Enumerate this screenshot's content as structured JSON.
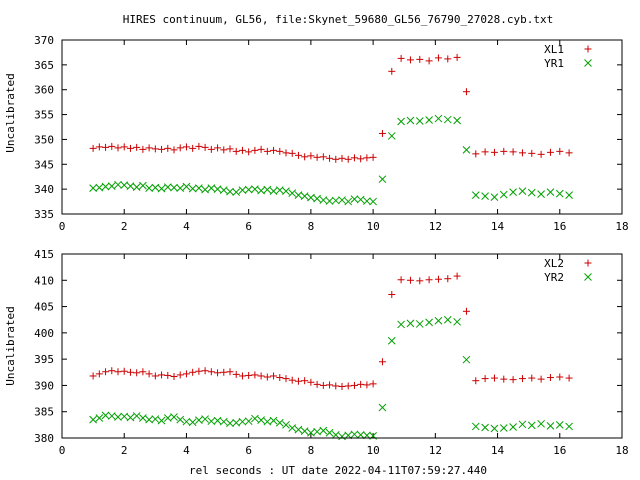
{
  "chart_data": [
    {
      "type": "scatter",
      "title": "HIRES continuum, GL56, file:Skynet_59680_GL56_76790_27028.cyb.txt",
      "xlabel": "",
      "ylabel": "Uncalibrated",
      "xlim": [
        0,
        18
      ],
      "ylim": [
        335,
        370
      ],
      "xticks": [
        0,
        2,
        4,
        6,
        8,
        10,
        12,
        14,
        16,
        18
      ],
      "yticks": [
        335,
        340,
        345,
        350,
        355,
        360,
        365,
        370
      ],
      "grid": false,
      "legend": "top-right",
      "series": [
        {
          "name": "XL1",
          "marker": "plus",
          "color": "#cc0000",
          "x": [
            1.0,
            1.2,
            1.4,
            1.6,
            1.8,
            2.0,
            2.2,
            2.4,
            2.6,
            2.8,
            3.0,
            3.2,
            3.4,
            3.6,
            3.8,
            4.0,
            4.2,
            4.4,
            4.6,
            4.8,
            5.0,
            5.2,
            5.4,
            5.6,
            5.8,
            6.0,
            6.2,
            6.4,
            6.6,
            6.8,
            7.0,
            7.2,
            7.4,
            7.6,
            7.8,
            8.0,
            8.2,
            8.4,
            8.6,
            8.8,
            9.0,
            9.2,
            9.4,
            9.6,
            9.8,
            10.0,
            10.3,
            10.6,
            10.9,
            11.2,
            11.5,
            11.8,
            12.1,
            12.4,
            12.7,
            13.0,
            13.3,
            13.6,
            13.9,
            14.2,
            14.5,
            14.8,
            15.1,
            15.4,
            15.7,
            16.0,
            16.3
          ],
          "y": [
            348.2,
            348.5,
            348.4,
            348.6,
            348.3,
            348.5,
            348.2,
            348.4,
            348.0,
            348.3,
            348.1,
            348.0,
            348.2,
            347.9,
            348.3,
            348.5,
            348.2,
            348.6,
            348.4,
            348.0,
            348.3,
            347.9,
            348.1,
            347.6,
            347.8,
            347.5,
            347.8,
            348.0,
            347.6,
            347.8,
            347.6,
            347.3,
            347.2,
            346.8,
            346.5,
            346.7,
            346.4,
            346.5,
            346.2,
            346.0,
            346.2,
            346.0,
            346.3,
            346.1,
            346.3,
            346.4,
            351.2,
            363.7,
            366.3,
            366.0,
            366.1,
            365.8,
            366.4,
            366.2,
            366.5,
            359.6,
            347.1,
            347.5,
            347.4,
            347.6,
            347.5,
            347.3,
            347.2,
            347.0,
            347.4,
            347.6,
            347.3
          ]
        },
        {
          "name": "YR1",
          "marker": "cross",
          "color": "#00a000",
          "x": [
            1.0,
            1.2,
            1.4,
            1.6,
            1.8,
            2.0,
            2.2,
            2.4,
            2.6,
            2.8,
            3.0,
            3.2,
            3.4,
            3.6,
            3.8,
            4.0,
            4.2,
            4.4,
            4.6,
            4.8,
            5.0,
            5.2,
            5.4,
            5.6,
            5.8,
            6.0,
            6.2,
            6.4,
            6.6,
            6.8,
            7.0,
            7.2,
            7.4,
            7.6,
            7.8,
            8.0,
            8.2,
            8.4,
            8.6,
            8.8,
            9.0,
            9.2,
            9.4,
            9.6,
            9.8,
            10.0,
            10.3,
            10.6,
            10.9,
            11.2,
            11.5,
            11.8,
            12.1,
            12.4,
            12.7,
            13.0,
            13.3,
            13.6,
            13.9,
            14.2,
            14.5,
            14.8,
            15.1,
            15.4,
            15.7,
            16.0,
            16.3
          ],
          "y": [
            340.2,
            340.3,
            340.5,
            340.6,
            340.9,
            340.8,
            340.6,
            340.4,
            340.7,
            340.2,
            340.3,
            340.1,
            340.4,
            340.3,
            340.2,
            340.5,
            340.1,
            340.2,
            339.9,
            340.2,
            340.0,
            339.8,
            339.5,
            339.4,
            339.8,
            339.9,
            340.0,
            339.7,
            339.9,
            339.6,
            339.8,
            339.6,
            339.2,
            338.8,
            338.6,
            338.3,
            338.1,
            337.8,
            337.6,
            337.7,
            337.8,
            337.5,
            338.0,
            337.9,
            337.6,
            337.5,
            342.0,
            350.7,
            353.6,
            353.8,
            353.7,
            353.9,
            354.2,
            354.0,
            353.8,
            347.9,
            338.8,
            338.6,
            338.4,
            338.9,
            339.4,
            339.6,
            339.3,
            339.0,
            339.4,
            339.1,
            338.8
          ]
        }
      ]
    },
    {
      "type": "scatter",
      "title": "",
      "xlabel": "rel seconds : UT date 2022-04-11T07:59:27.440",
      "ylabel": "Uncalibrated",
      "xlim": [
        0,
        18
      ],
      "ylim": [
        380,
        415
      ],
      "xticks": [
        0,
        2,
        4,
        6,
        8,
        10,
        12,
        14,
        16,
        18
      ],
      "yticks": [
        380,
        385,
        390,
        395,
        400,
        405,
        410,
        415
      ],
      "grid": false,
      "legend": "top-right",
      "series": [
        {
          "name": "XL2",
          "marker": "plus",
          "color": "#cc0000",
          "x": [
            1.0,
            1.2,
            1.4,
            1.6,
            1.8,
            2.0,
            2.2,
            2.4,
            2.6,
            2.8,
            3.0,
            3.2,
            3.4,
            3.6,
            3.8,
            4.0,
            4.2,
            4.4,
            4.6,
            4.8,
            5.0,
            5.2,
            5.4,
            5.6,
            5.8,
            6.0,
            6.2,
            6.4,
            6.6,
            6.8,
            7.0,
            7.2,
            7.4,
            7.6,
            7.8,
            8.0,
            8.2,
            8.4,
            8.6,
            8.8,
            9.0,
            9.2,
            9.4,
            9.6,
            9.8,
            10.0,
            10.3,
            10.6,
            10.9,
            11.2,
            11.5,
            11.8,
            12.1,
            12.4,
            12.7,
            13.0,
            13.3,
            13.6,
            13.9,
            14.2,
            14.5,
            14.8,
            15.1,
            15.4,
            15.7,
            16.0,
            16.3
          ],
          "y": [
            391.8,
            392.2,
            392.6,
            392.8,
            392.6,
            392.7,
            392.5,
            392.4,
            392.6,
            392.2,
            391.8,
            392.0,
            391.9,
            391.7,
            392.0,
            392.2,
            392.5,
            392.7,
            392.8,
            392.6,
            392.4,
            392.5,
            392.6,
            392.1,
            391.8,
            391.9,
            392.0,
            391.8,
            391.6,
            391.8,
            391.5,
            391.3,
            391.0,
            390.8,
            390.9,
            390.6,
            390.2,
            390.0,
            390.1,
            389.9,
            389.8,
            389.9,
            390.0,
            390.2,
            390.1,
            390.3,
            394.5,
            407.3,
            410.1,
            410.0,
            409.9,
            410.1,
            410.2,
            410.3,
            410.8,
            404.1,
            390.9,
            391.3,
            391.4,
            391.2,
            391.1,
            391.3,
            391.4,
            391.2,
            391.5,
            391.6,
            391.4
          ]
        },
        {
          "name": "YR2",
          "marker": "cross",
          "color": "#00a000",
          "x": [
            1.0,
            1.2,
            1.4,
            1.6,
            1.8,
            2.0,
            2.2,
            2.4,
            2.6,
            2.8,
            3.0,
            3.2,
            3.4,
            3.6,
            3.8,
            4.0,
            4.2,
            4.4,
            4.6,
            4.8,
            5.0,
            5.2,
            5.4,
            5.6,
            5.8,
            6.0,
            6.2,
            6.4,
            6.6,
            6.8,
            7.0,
            7.2,
            7.4,
            7.6,
            7.8,
            8.0,
            8.2,
            8.4,
            8.6,
            8.8,
            9.0,
            9.2,
            9.4,
            9.6,
            9.8,
            10.0,
            10.3,
            10.6,
            10.9,
            11.2,
            11.5,
            11.8,
            12.1,
            12.4,
            12.7,
            13.0,
            13.3,
            13.6,
            13.9,
            14.2,
            14.5,
            14.8,
            15.1,
            15.4,
            15.7,
            16.0,
            16.3
          ],
          "y": [
            383.5,
            383.8,
            384.3,
            384.2,
            384.0,
            384.1,
            383.9,
            384.2,
            383.8,
            383.5,
            383.6,
            383.3,
            383.8,
            384.0,
            383.5,
            383.1,
            383.0,
            383.4,
            383.6,
            383.2,
            383.3,
            383.1,
            382.8,
            382.9,
            383.1,
            383.2,
            383.7,
            383.4,
            383.1,
            383.3,
            382.9,
            382.5,
            381.9,
            381.6,
            381.3,
            381.0,
            381.2,
            381.4,
            381.0,
            380.6,
            380.3,
            380.5,
            380.7,
            380.6,
            380.5,
            380.4,
            385.8,
            398.5,
            401.6,
            401.8,
            401.7,
            402.0,
            402.3,
            402.5,
            402.1,
            394.9,
            382.2,
            382.0,
            381.8,
            381.9,
            382.1,
            382.6,
            382.4,
            382.7,
            382.3,
            382.5,
            382.2
          ]
        }
      ]
    }
  ]
}
